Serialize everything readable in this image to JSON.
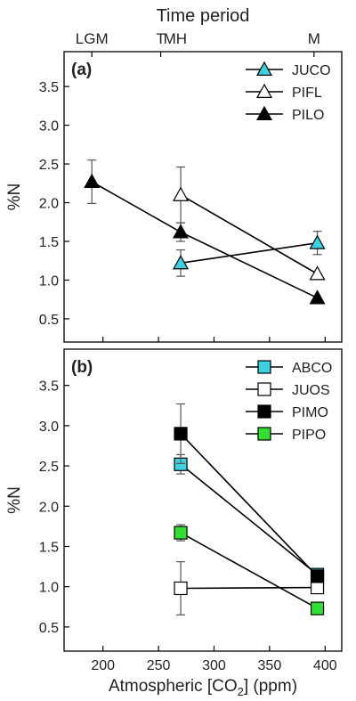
{
  "top_axis": {
    "title": "Time period",
    "labels": [
      {
        "label": "LGM",
        "x": 190
      },
      {
        "label": "T",
        "x": 252
      },
      {
        "label": "MH",
        "x": 265
      },
      {
        "label": "M",
        "x": 390
      }
    ]
  },
  "x_axis": {
    "label_prefix": "Atmospheric [CO",
    "label_sub": "2",
    "label_suffix": "] (ppm)",
    "ticks": [
      "200",
      "250",
      "300",
      "350",
      "400"
    ],
    "tick_values": [
      200,
      250,
      300,
      350,
      400
    ],
    "range": [
      165,
      415
    ]
  },
  "chart_data": [
    {
      "type": "line",
      "panel_label": "(a)",
      "ylabel": "%N",
      "ylim": [
        0.2,
        3.95
      ],
      "yticks": [
        "0.5",
        "1.0",
        "1.5",
        "2.0",
        "2.5",
        "3.0",
        "3.5"
      ],
      "ytick_values": [
        0.5,
        1.0,
        1.5,
        2.0,
        2.5,
        3.0,
        3.5
      ],
      "legend_position": "top-right",
      "series": [
        {
          "name": "JUCO",
          "marker": "triangle",
          "color": "#3fd0e0",
          "points": [
            {
              "x": 270,
              "y": 1.22,
              "err": 0.17
            },
            {
              "x": 393,
              "y": 1.48,
              "err": 0.15
            }
          ]
        },
        {
          "name": "PIFL",
          "marker": "triangle",
          "color": "#ffffff",
          "points": [
            {
              "x": 270,
              "y": 2.1,
              "err": 0.36
            },
            {
              "x": 393,
              "y": 1.08,
              "err": 0
            }
          ]
        },
        {
          "name": "PILO",
          "marker": "triangle",
          "color": "#000000",
          "points": [
            {
              "x": 190,
              "y": 2.27,
              "err": 0.28
            },
            {
              "x": 270,
              "y": 1.62,
              "err": 0.12
            },
            {
              "x": 393,
              "y": 0.77,
              "err": 0
            }
          ]
        }
      ]
    },
    {
      "type": "line",
      "panel_label": "(b)",
      "ylabel": "%N",
      "ylim": [
        0.2,
        3.95
      ],
      "yticks": [
        "0.5",
        "1.0",
        "1.5",
        "2.0",
        "2.5",
        "3.0",
        "3.5"
      ],
      "ytick_values": [
        0.5,
        1.0,
        1.5,
        2.0,
        2.5,
        3.0,
        3.5
      ],
      "legend_position": "top-right",
      "series": [
        {
          "name": "ABCO",
          "marker": "square",
          "color": "#3fd0e0",
          "points": [
            {
              "x": 270,
              "y": 2.52,
              "err": 0.12
            },
            {
              "x": 393,
              "y": 1.15,
              "err": 0
            }
          ]
        },
        {
          "name": "JUOS",
          "marker": "square",
          "color": "#ffffff",
          "points": [
            {
              "x": 270,
              "y": 0.98,
              "err": 0.33
            },
            {
              "x": 393,
              "y": 0.99,
              "err": 0
            }
          ]
        },
        {
          "name": "PIMO",
          "marker": "square",
          "color": "#000000",
          "points": [
            {
              "x": 270,
              "y": 2.9,
              "err": 0.37
            },
            {
              "x": 393,
              "y": 1.13,
              "err": 0
            }
          ]
        },
        {
          "name": "PIPO",
          "marker": "square",
          "color": "#33dd33",
          "points": [
            {
              "x": 270,
              "y": 1.67,
              "err": 0.1
            },
            {
              "x": 393,
              "y": 0.73,
              "err": 0
            }
          ]
        }
      ]
    }
  ]
}
